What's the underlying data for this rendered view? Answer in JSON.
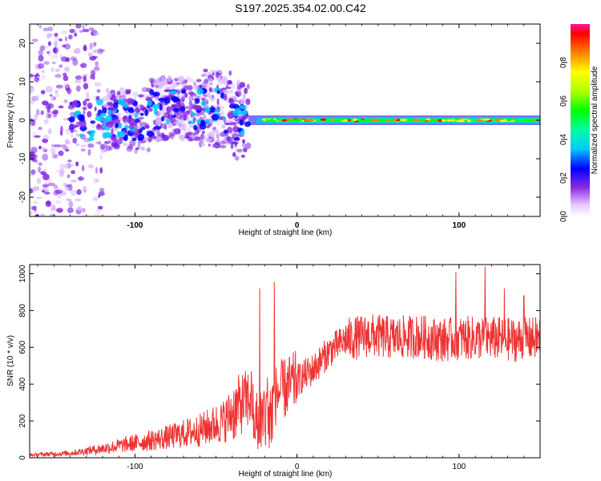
{
  "title": "S197.2025.354.02.00.C42",
  "chart_data": [
    {
      "type": "heatmap",
      "xlabel": "Height of straight line (km)",
      "ylabel": "Frequency (Hz)",
      "xlim": [
        -165,
        150
      ],
      "ylim": [
        -25,
        25
      ],
      "x_ticks": [
        -100,
        0,
        100
      ],
      "y_ticks": [
        20,
        10,
        0,
        -10,
        -20
      ],
      "colorbar": {
        "label": "Normalized spectral amplitude",
        "range": [
          0,
          1
        ],
        "ticks": [
          0.0,
          0.2,
          0.4,
          0.6,
          0.8
        ]
      }
    },
    {
      "type": "line",
      "color": "#ee3333",
      "xlabel": "Height of straight line (km)",
      "ylabel": "SNR (10 * v/v)",
      "xlim": [
        -165,
        150
      ],
      "ylim": [
        0,
        1050
      ],
      "x_ticks": [
        -100,
        0,
        100
      ],
      "y_ticks": [
        0,
        200,
        400,
        600,
        800,
        1000
      ],
      "trend": [
        {
          "x": -165,
          "y": 15
        },
        {
          "x": -140,
          "y": 25
        },
        {
          "x": -120,
          "y": 50
        },
        {
          "x": -100,
          "y": 80
        },
        {
          "x": -80,
          "y": 110
        },
        {
          "x": -60,
          "y": 150
        },
        {
          "x": -45,
          "y": 200
        },
        {
          "x": -35,
          "y": 290
        },
        {
          "x": -28,
          "y": 330
        },
        {
          "x": -25,
          "y": 200
        },
        {
          "x": -15,
          "y": 330
        },
        {
          "x": 0,
          "y": 420
        },
        {
          "x": 10,
          "y": 480
        },
        {
          "x": 20,
          "y": 580
        },
        {
          "x": 30,
          "y": 640
        },
        {
          "x": 45,
          "y": 665
        },
        {
          "x": 60,
          "y": 650
        },
        {
          "x": 75,
          "y": 660
        },
        {
          "x": 90,
          "y": 640
        },
        {
          "x": 100,
          "y": 650
        },
        {
          "x": 120,
          "y": 650
        },
        {
          "x": 135,
          "y": 640
        },
        {
          "x": 150,
          "y": 650
        }
      ],
      "spikes": [
        {
          "x": -23,
          "y": 920
        },
        {
          "x": -14,
          "y": 955
        },
        {
          "x": 98,
          "y": 1010
        },
        {
          "x": 116,
          "y": 1040
        },
        {
          "x": 128,
          "y": 920
        },
        {
          "x": 140,
          "y": 880
        }
      ]
    }
  ]
}
